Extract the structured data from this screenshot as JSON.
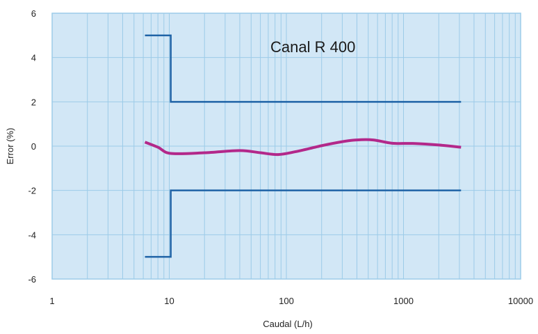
{
  "chart_data": {
    "type": "line",
    "title": "Canal R 400",
    "xlabel": "Caudal (L/h)",
    "ylabel": "Error (%)",
    "x_scale": "log",
    "xlim": [
      1,
      10000
    ],
    "ylim": [
      -6,
      6
    ],
    "x_ticks": [
      1,
      10,
      100,
      1000,
      10000
    ],
    "x_tick_labels": [
      "1",
      "10",
      "100",
      "1000",
      "10000"
    ],
    "y_ticks": [
      -6,
      -4,
      -2,
      0,
      2,
      4,
      6
    ],
    "y_tick_labels": [
      "-6",
      "-4",
      "-2",
      "0",
      "2",
      "4",
      "6"
    ],
    "grid": true,
    "plot_background": "#d2e7f6",
    "grid_color": "#9ccbe8",
    "series": [
      {
        "role": "upper-limit",
        "color": "#1f63a6",
        "points": [
          [
            6.2,
            5
          ],
          [
            10.3,
            5
          ],
          [
            10.3,
            2
          ],
          [
            3100,
            2
          ]
        ]
      },
      {
        "role": "lower-limit",
        "color": "#1f63a6",
        "points": [
          [
            6.2,
            -5
          ],
          [
            10.3,
            -5
          ],
          [
            10.3,
            -2
          ],
          [
            3100,
            -2
          ]
        ]
      },
      {
        "role": "measured-error",
        "color": "#b3288a",
        "points": [
          [
            6.2,
            0.18
          ],
          [
            8,
            -0.05
          ],
          [
            10.3,
            -0.33
          ],
          [
            20,
            -0.3
          ],
          [
            40,
            -0.2
          ],
          [
            60,
            -0.3
          ],
          [
            85,
            -0.38
          ],
          [
            120,
            -0.25
          ],
          [
            200,
            0.02
          ],
          [
            300,
            0.2
          ],
          [
            400,
            0.28
          ],
          [
            550,
            0.28
          ],
          [
            800,
            0.13
          ],
          [
            1200,
            0.12
          ],
          [
            2000,
            0.05
          ],
          [
            3100,
            -0.05
          ]
        ]
      }
    ]
  }
}
